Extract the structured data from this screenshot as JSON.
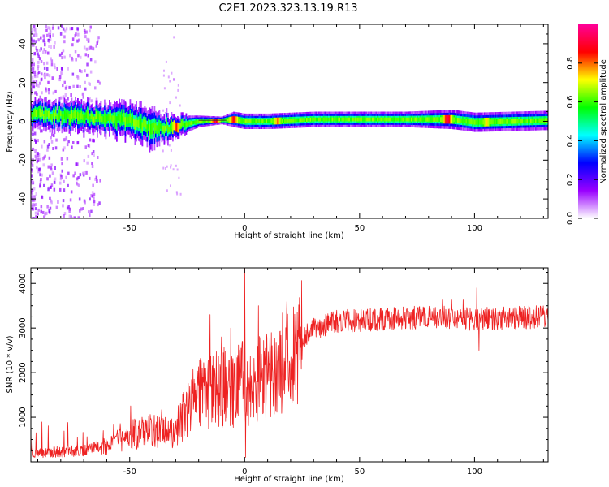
{
  "title": "C2E1.2023.323.13.19.R13",
  "colors": {
    "spectrum_trace": "#ff3a30",
    "snr_trace": "#ee2222",
    "frame": "#000000"
  },
  "chart_data": [
    {
      "type": "heatmap",
      "name": "spectrogram",
      "xlabel": "Height of straight line (km)",
      "ylabel": "Frequency (Hz)",
      "xlim": [
        -93,
        132
      ],
      "ylim": [
        -50,
        50
      ],
      "xticks": [
        -50,
        0,
        50,
        100
      ],
      "yticks": [
        -40,
        -20,
        0,
        20,
        40
      ],
      "colorbar": {
        "label": "Normalized spectral amplitude",
        "range": [
          0,
          1
        ],
        "ticks": [
          0.0,
          0.2,
          0.4,
          0.6,
          0.8
        ],
        "colormap": [
          "#ffffff",
          "#9900ff",
          "#0000ff",
          "#00ffff",
          "#00ff00",
          "#ffff00",
          "#ff0000",
          "#ff0099"
        ]
      },
      "ridge": [
        {
          "x": -90,
          "f": 3.5,
          "width": 7
        },
        {
          "x": -75,
          "f": 2.5,
          "width": 7
        },
        {
          "x": -60,
          "f": 1.5,
          "width": 8
        },
        {
          "x": -50,
          "f": 0.5,
          "width": 9
        },
        {
          "x": -42,
          "f": -3,
          "width": 10
        },
        {
          "x": -35,
          "f": -3,
          "width": 7
        },
        {
          "x": -28,
          "f": -2,
          "width": 5
        },
        {
          "x": -20,
          "f": 0,
          "width": 3
        },
        {
          "x": -10,
          "f": 0.5,
          "width": 2
        },
        {
          "x": -5,
          "f": 1,
          "width": 4
        },
        {
          "x": 0,
          "f": 0,
          "width": 4
        },
        {
          "x": 10,
          "f": 0,
          "width": 4
        },
        {
          "x": 30,
          "f": 1,
          "width": 4
        },
        {
          "x": 50,
          "f": 1,
          "width": 4
        },
        {
          "x": 70,
          "f": 1,
          "width": 4
        },
        {
          "x": 90,
          "f": 1,
          "width": 5
        },
        {
          "x": 100,
          "f": -0.5,
          "width": 5
        },
        {
          "x": 132,
          "f": 0.5,
          "width": 5
        }
      ],
      "hotspots": [
        {
          "x": -13,
          "f": 0.5,
          "amp": 0.95
        },
        {
          "x": -5,
          "f": 1.5,
          "amp": 0.9
        },
        {
          "x": -30,
          "f": -2,
          "amp": 0.85
        },
        {
          "x": 14,
          "f": 0,
          "amp": 0.8
        },
        {
          "x": 88,
          "f": 1,
          "amp": 0.95
        },
        {
          "x": 105,
          "f": -0.5,
          "amp": 0.75
        }
      ]
    },
    {
      "type": "line",
      "name": "snr",
      "xlabel": "Height of straight line (km)",
      "ylabel": "SNR (10 * v/v)",
      "xlim": [
        -93,
        132
      ],
      "ylim": [
        0,
        4350
      ],
      "xticks": [
        -50,
        0,
        50,
        100
      ],
      "yticks": [
        1000,
        2000,
        3000,
        4000
      ],
      "envelope": [
        {
          "x": -93,
          "y": 200
        },
        {
          "x": -70,
          "y": 250
        },
        {
          "x": -60,
          "y": 350
        },
        {
          "x": -50,
          "y": 600
        },
        {
          "x": -40,
          "y": 700
        },
        {
          "x": -30,
          "y": 650
        },
        {
          "x": -25,
          "y": 1200
        },
        {
          "x": -20,
          "y": 1500
        },
        {
          "x": -10,
          "y": 1700
        },
        {
          "x": 0,
          "y": 1700
        },
        {
          "x": 10,
          "y": 1900
        },
        {
          "x": 20,
          "y": 2500
        },
        {
          "x": 30,
          "y": 3000
        },
        {
          "x": 40,
          "y": 3150
        },
        {
          "x": 60,
          "y": 3200
        },
        {
          "x": 80,
          "y": 3250
        },
        {
          "x": 100,
          "y": 3200
        },
        {
          "x": 132,
          "y": 3250
        }
      ],
      "spikes": [
        {
          "x": -15,
          "y": 3300
        },
        {
          "x": -10,
          "y": 2800
        },
        {
          "x": -6,
          "y": 3000
        },
        {
          "x": -1,
          "y": 2700
        },
        {
          "x": 0,
          "y": 4350
        },
        {
          "x": 0.4,
          "y": 100
        },
        {
          "x": 6,
          "y": 3500
        },
        {
          "x": 86,
          "y": 3650
        },
        {
          "x": 90,
          "y": 3650
        },
        {
          "x": 95,
          "y": 3650
        },
        {
          "x": 101,
          "y": 3900
        },
        {
          "x": 102,
          "y": 2500
        }
      ]
    }
  ]
}
